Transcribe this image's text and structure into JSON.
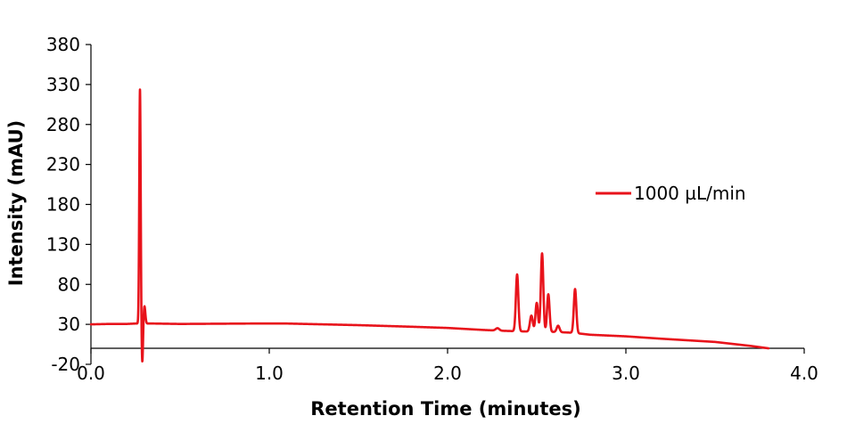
{
  "chart_data": {
    "type": "line",
    "title": "",
    "xlabel": "Retention Time (minutes)",
    "ylabel": "Intensity (mAU)",
    "xlim": [
      0,
      4
    ],
    "ylim": [
      -20,
      380
    ],
    "x_ticks": [
      0,
      1,
      2,
      3,
      4
    ],
    "x_tick_labels": [
      "0.0",
      "1.0",
      "2.0",
      "3.0",
      "4.0"
    ],
    "y_ticks": [
      -20,
      30,
      80,
      130,
      180,
      230,
      280,
      330,
      380
    ],
    "y_tick_labels": [
      "-20",
      "30",
      "80",
      "130",
      "180",
      "230",
      "280",
      "330",
      "380"
    ],
    "grid": false,
    "legend_position": "right",
    "series": [
      {
        "name": "1000 µL/min",
        "color": "#e8131b",
        "baseline": [
          [
            0.0,
            30
          ],
          [
            0.1,
            30.5
          ],
          [
            0.2,
            30.5
          ],
          [
            0.25,
            31
          ],
          [
            0.35,
            31
          ],
          [
            0.5,
            30.5
          ],
          [
            0.9,
            31
          ],
          [
            1.1,
            31
          ],
          [
            1.5,
            29
          ],
          [
            1.8,
            27
          ],
          [
            2.0,
            25.5
          ],
          [
            2.2,
            23
          ],
          [
            2.3,
            22
          ],
          [
            2.45,
            21
          ],
          [
            2.6,
            20.5
          ],
          [
            2.7,
            19.5
          ],
          [
            2.8,
            17
          ],
          [
            3.0,
            15
          ],
          [
            3.2,
            12
          ],
          [
            3.5,
            8
          ],
          [
            3.7,
            3
          ],
          [
            3.8,
            0
          ]
        ],
        "peaks": [
          {
            "rt": 0.275,
            "height": 293,
            "width": 0.004
          },
          {
            "rt": 0.288,
            "height": -50,
            "width": 0.004
          },
          {
            "rt": 0.3,
            "height": 22,
            "width": 0.005
          },
          {
            "rt": 2.28,
            "height": 3,
            "width": 0.01
          },
          {
            "rt": 2.39,
            "height": 71,
            "width": 0.007
          },
          {
            "rt": 2.47,
            "height": 20,
            "width": 0.008
          },
          {
            "rt": 2.5,
            "height": 36,
            "width": 0.007
          },
          {
            "rt": 2.53,
            "height": 98,
            "width": 0.007
          },
          {
            "rt": 2.565,
            "height": 47,
            "width": 0.007
          },
          {
            "rt": 2.62,
            "height": 8,
            "width": 0.008
          },
          {
            "rt": 2.715,
            "height": 55,
            "width": 0.007
          }
        ]
      }
    ]
  }
}
